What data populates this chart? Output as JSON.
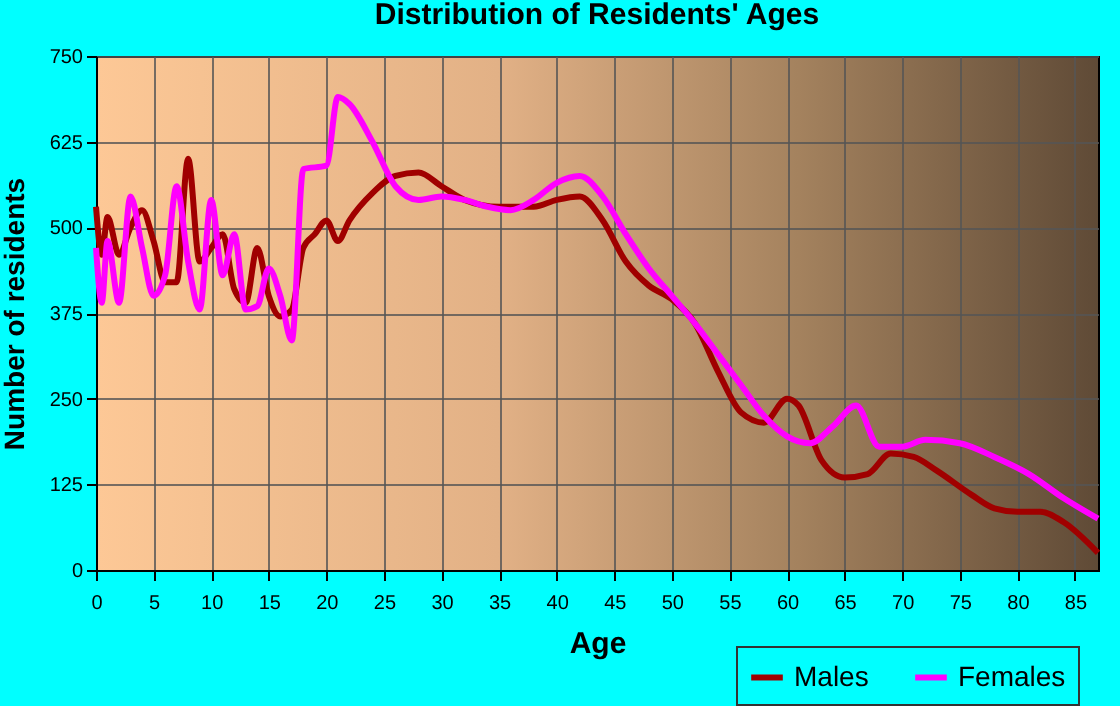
{
  "chart_data": {
    "type": "line",
    "title": "Distribution of Residents' Ages",
    "xlabel": "Age",
    "ylabel": "Number of residents",
    "xlim": [
      0,
      87
    ],
    "xticks": [
      0,
      5,
      10,
      15,
      20,
      25,
      30,
      35,
      40,
      45,
      50,
      55,
      60,
      65,
      70,
      75,
      80,
      85
    ],
    "ylim": [
      0,
      750
    ],
    "yticks": [
      0,
      125,
      250,
      375,
      500,
      625,
      750
    ],
    "grid": true,
    "legend": "bottom right",
    "marker": "none",
    "line_style": "solid",
    "series": [
      {
        "name": "Males",
        "color": "#a00000",
        "x": [
          0,
          0.5,
          1,
          2,
          3,
          4,
          5,
          6,
          7,
          8,
          9,
          10,
          11,
          12,
          13,
          14,
          15,
          16,
          17,
          18,
          19,
          20,
          21,
          22,
          24,
          26,
          28,
          30,
          32,
          35,
          38,
          40,
          42,
          44,
          46,
          48,
          50,
          52,
          54,
          56,
          58,
          60,
          61,
          63,
          65,
          67,
          69,
          71,
          73,
          76,
          78,
          80,
          82,
          84,
          87
        ],
        "values": [
          530,
          460,
          515,
          460,
          500,
          525,
          480,
          420,
          420,
          600,
          450,
          470,
          490,
          410,
          390,
          470,
          400,
          370,
          380,
          470,
          490,
          510,
          480,
          510,
          550,
          575,
          580,
          560,
          540,
          530,
          530,
          540,
          545,
          510,
          450,
          415,
          395,
          360,
          290,
          230,
          215,
          250,
          240,
          160,
          135,
          140,
          170,
          165,
          145,
          110,
          90,
          85,
          85,
          70,
          25
        ]
      },
      {
        "name": "Females",
        "color": "#ff00ff",
        "x": [
          0,
          0.5,
          1,
          2,
          3,
          4,
          5,
          6,
          7,
          8,
          9,
          10,
          11,
          12,
          13,
          14,
          15,
          16,
          17,
          18,
          20,
          21,
          22,
          24,
          26,
          28,
          30,
          32,
          34,
          36,
          38,
          40,
          42,
          44,
          46,
          48,
          50,
          52,
          54,
          56,
          58,
          60,
          62,
          64,
          66,
          68,
          70,
          72,
          75,
          78,
          81,
          84,
          87
        ],
        "values": [
          470,
          390,
          480,
          390,
          545,
          470,
          400,
          430,
          560,
          450,
          380,
          540,
          430,
          490,
          380,
          385,
          440,
          400,
          335,
          585,
          590,
          690,
          680,
          625,
          560,
          540,
          545,
          540,
          530,
          525,
          540,
          565,
          575,
          545,
          490,
          440,
          400,
          360,
          315,
          270,
          225,
          195,
          185,
          210,
          240,
          180,
          180,
          190,
          185,
          165,
          140,
          105,
          75
        ]
      }
    ]
  }
}
